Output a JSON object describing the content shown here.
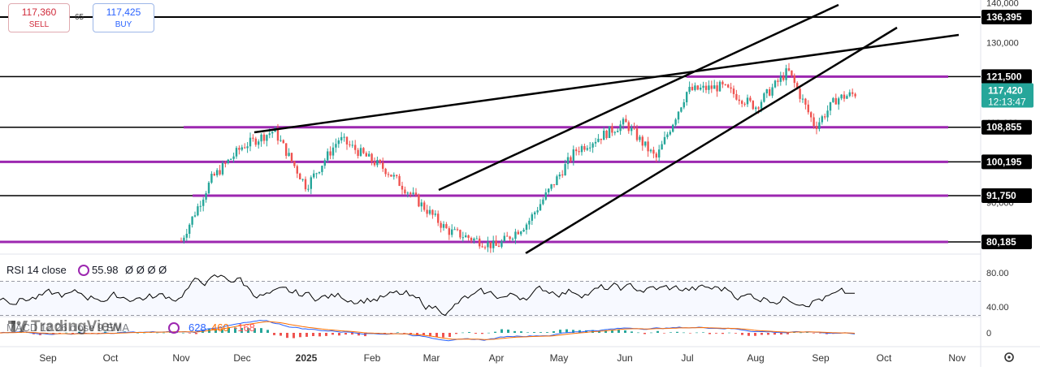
{
  "trade_widget": {
    "sell_price": "117,360",
    "sell_label": "SELL",
    "spread": "65",
    "buy_price": "117,425",
    "buy_label": "BUY"
  },
  "price_scale": {
    "ticks": [
      {
        "value": 140000,
        "label": "140,000"
      },
      {
        "value": 130000,
        "label": "130,000"
      },
      {
        "value": 110000,
        "label": "110,000"
      },
      {
        "value": 90000,
        "label": "90,000"
      }
    ],
    "current_price": {
      "value": 117420,
      "label": "117,420",
      "countdown": "12:13:47",
      "color": "#26a69a"
    }
  },
  "levels": [
    {
      "value": 136395,
      "label": "136,395",
      "color": "#000000"
    },
    {
      "value": 121500,
      "label": "121,500",
      "color": "#9c27b0"
    },
    {
      "value": 108855,
      "label": "108,855",
      "color": "#9c27b0"
    },
    {
      "value": 100195,
      "label": "100,195",
      "color": "#9c27b0"
    },
    {
      "value": 91750,
      "label": "91,750",
      "color": "#9c27b0"
    },
    {
      "value": 80185,
      "label": "80,185",
      "color": "#9c27b0"
    }
  ],
  "time_axis": [
    "Sep",
    "Oct",
    "Nov",
    "Dec",
    "2025",
    "Feb",
    "Mar",
    "Apr",
    "May",
    "Jun",
    "Jul",
    "Aug",
    "Sep",
    "Oct",
    "Nov"
  ],
  "rsi": {
    "title": "RSI 14 close",
    "value": "55.98",
    "placeholders": "Ø Ø Ø Ø",
    "ticks": [
      "80.00",
      "40.00"
    ],
    "upper_band": 70,
    "lower_band": 30,
    "color": "#000000"
  },
  "macd": {
    "title": "MACD 12 26 close 9 EMA",
    "values": [
      {
        "text": "628",
        "color": "#2962ff"
      },
      {
        "text": "460",
        "color": "#ff6d00"
      },
      {
        "text": "-168",
        "color": "#ff5252"
      }
    ],
    "ticks": [
      "0"
    ]
  },
  "logo": {
    "text": "TradingView"
  },
  "colors": {
    "up": "#26a69a",
    "down": "#ef5350",
    "level_purple": "#9c27b0",
    "accent": "#2962ff"
  },
  "chart_data": {
    "type": "candlestick",
    "y_range": [
      76000,
      141000
    ],
    "x_start_month": "Sep 2024",
    "x_end_month": "Nov 2025",
    "key_points": [
      {
        "date": "Nov 2024",
        "close": 80500
      },
      {
        "date": "Nov 2024",
        "close": 96000
      },
      {
        "date": "Dec 2024",
        "close": 104000
      },
      {
        "date": "Dec 2024",
        "close": 108000
      },
      {
        "date": "Jan 2025",
        "close": 94000
      },
      {
        "date": "Jan 2025",
        "close": 106000
      },
      {
        "date": "Feb 2025",
        "close": 98000
      },
      {
        "date": "Mar 2025",
        "close": 83000
      },
      {
        "date": "Apr 2025",
        "close": 79000
      },
      {
        "date": "Apr 2025",
        "close": 85000
      },
      {
        "date": "May 2025",
        "close": 103000
      },
      {
        "date": "Jun 2025",
        "close": 110000
      },
      {
        "date": "Jun 2025",
        "close": 101000
      },
      {
        "date": "Jul 2025",
        "close": 118000
      },
      {
        "date": "Jul 2025",
        "close": 119000
      },
      {
        "date": "Aug 2025",
        "close": 114000
      },
      {
        "date": "Aug 2025",
        "close": 123000
      },
      {
        "date": "Sep 2025",
        "close": 109000
      },
      {
        "date": "Sep 2025",
        "close": 116000
      },
      {
        "date": "Sep 2025",
        "close": 117420
      }
    ]
  }
}
